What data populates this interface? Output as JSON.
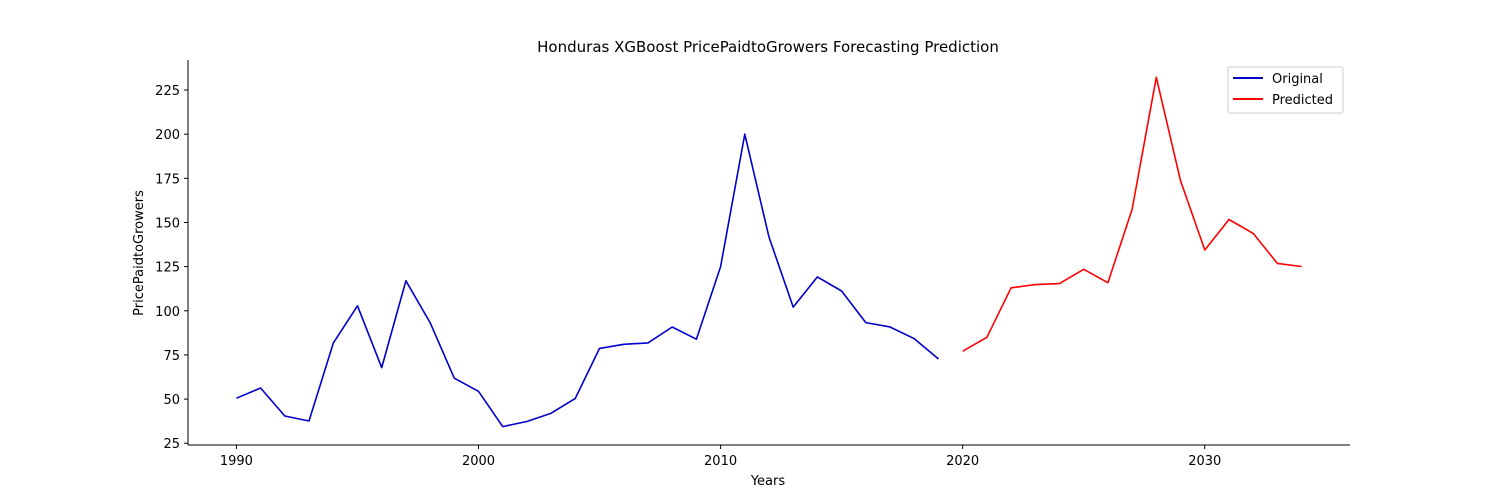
{
  "chart_data": {
    "type": "line",
    "title": "Honduras XGBoost PricePaidtoGrowers Forecasting Prediction",
    "xlabel": "Years",
    "ylabel": "PricePaidtoGrowers",
    "xlim": [
      1988,
      2036
    ],
    "ylim": [
      24,
      242
    ],
    "xticks": [
      1990,
      2000,
      2010,
      2020,
      2030
    ],
    "yticks": [
      25,
      50,
      75,
      100,
      125,
      150,
      175,
      200,
      225
    ],
    "grid": false,
    "legend_position": "top-right",
    "series": [
      {
        "name": "Original",
        "color": "#0000cc",
        "x": [
          1990,
          1991,
          1992,
          1993,
          1994,
          1995,
          1996,
          1997,
          1998,
          1999,
          2000,
          2001,
          2002,
          2003,
          2004,
          2005,
          2006,
          2007,
          2008,
          2009,
          2010,
          2011,
          2012,
          2013,
          2014,
          2015,
          2016,
          2017,
          2018,
          2019
        ],
        "values": [
          50.5,
          56.3,
          40.4,
          37.6,
          81.7,
          102.8,
          67.8,
          117.0,
          93.3,
          61.8,
          54.4,
          34.4,
          37.3,
          42.0,
          50.4,
          78.7,
          81.0,
          81.8,
          90.8,
          83.9,
          125.0,
          200.0,
          141.7,
          102.1,
          119.2,
          111.2,
          93.3,
          90.8,
          84.2,
          72.7
        ]
      },
      {
        "name": "Predicted",
        "color": "#ff0000",
        "x": [
          2020,
          2021,
          2022,
          2023,
          2024,
          2025,
          2026,
          2027,
          2028,
          2029,
          2030,
          2031,
          2032,
          2033,
          2034
        ],
        "values": [
          77.1,
          85.0,
          113.0,
          114.8,
          115.4,
          123.5,
          115.9,
          157.4,
          232.2,
          173.7,
          134.4,
          151.7,
          143.8,
          126.8,
          125.1
        ]
      }
    ]
  }
}
